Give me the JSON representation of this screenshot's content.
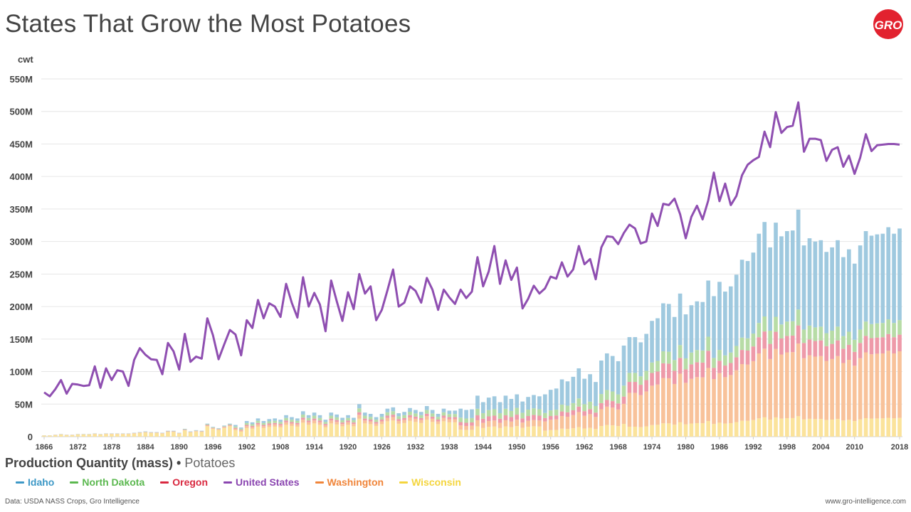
{
  "page": {
    "title": "States That Grow the Most Potatoes",
    "unit_label": "cwt",
    "subtitle_main": "Production Quantity (mass)",
    "subtitle_sep": "•",
    "subtitle_crop": "Potatoes",
    "source": "Data: USDA NASS Crops, Gro Intelligence",
    "site": "www.gro-intelligence.com",
    "logo_text": "GRO"
  },
  "colors": {
    "Idaho": "#9fc9df",
    "North Dakota": "#b7dca6",
    "Oregon": "#ee9aa9",
    "Washington": "#f8c29a",
    "Wisconsin": "#fbe39b",
    "United States": "#8f4fb1",
    "legend_text": {
      "Idaho": "#3d98c6",
      "North Dakota": "#5bb84f",
      "Oregon": "#d9283f",
      "United States": "#8a45b0",
      "Washington": "#f0853a",
      "Wisconsin": "#f4d53d"
    }
  },
  "legend": [
    "Idaho",
    "North Dakota",
    "Oregon",
    "United States",
    "Washington",
    "Wisconsin"
  ],
  "chart_data": {
    "type": "bar+line",
    "title": "States That Grow the Most Potatoes",
    "ylabel": "cwt",
    "ylim": [
      0,
      550
    ],
    "y_unit_note": "millions of cwt",
    "yticks": [
      0,
      50,
      100,
      150,
      200,
      250,
      300,
      350,
      400,
      450,
      500,
      550
    ],
    "ytick_labels": [
      "0",
      "50M",
      "100M",
      "150M",
      "200M",
      "250M",
      "300M",
      "350M",
      "400M",
      "450M",
      "500M",
      "550M"
    ],
    "x_range": [
      1866,
      2018
    ],
    "xticks": [
      1866,
      1872,
      1878,
      1884,
      1890,
      1896,
      1902,
      1908,
      1914,
      1920,
      1926,
      1932,
      1938,
      1944,
      1950,
      1956,
      1962,
      1968,
      1974,
      1980,
      1986,
      1992,
      1998,
      2004,
      2010,
      2018
    ],
    "grid": true,
    "line_series": {
      "name": "United States",
      "x": [
        1866,
        1867,
        1868,
        1869,
        1870,
        1871,
        1872,
        1873,
        1874,
        1875,
        1876,
        1877,
        1878,
        1879,
        1880,
        1881,
        1882,
        1883,
        1884,
        1885,
        1886,
        1887,
        1888,
        1889,
        1890,
        1891,
        1892,
        1893,
        1894,
        1895,
        1896,
        1897,
        1898,
        1899,
        1900,
        1901,
        1902,
        1903,
        1904,
        1905,
        1906,
        1907,
        1908,
        1909,
        1910,
        1911,
        1912,
        1913,
        1914,
        1915,
        1916,
        1917,
        1918,
        1919,
        1920,
        1921,
        1922,
        1923,
        1924,
        1925,
        1926,
        1927,
        1928,
        1929,
        1930,
        1931,
        1932,
        1933,
        1934,
        1935,
        1936,
        1937,
        1938,
        1939,
        1940,
        1941,
        1942,
        1943,
        1944,
        1945,
        1946,
        1947,
        1948,
        1949,
        1950,
        1951,
        1952,
        1953,
        1954,
        1955,
        1956,
        1957,
        1958,
        1959,
        1960,
        1961,
        1962,
        1963,
        1964,
        1965,
        1966,
        1967,
        1968,
        1969,
        1970,
        1971,
        1972,
        1973,
        1974,
        1975,
        1976,
        1977,
        1978,
        1979,
        1980,
        1981,
        1982,
        1983,
        1984,
        1985,
        1986,
        1987,
        1988,
        1989,
        1990,
        1991,
        1992,
        1993,
        1994,
        1995,
        1996,
        1997,
        1998,
        1999,
        2000,
        2001,
        2002,
        2003,
        2004,
        2005,
        2006,
        2007,
        2008,
        2009,
        2010,
        2011,
        2012,
        2013,
        2014,
        2015,
        2016,
        2017,
        2018
      ],
      "values": [
        68,
        62,
        73,
        87,
        66,
        81,
        80,
        78,
        79,
        108,
        75,
        105,
        87,
        102,
        100,
        78,
        118,
        136,
        126,
        119,
        118,
        96,
        144,
        131,
        103,
        158,
        115,
        123,
        120,
        182,
        156,
        119,
        142,
        164,
        157,
        125,
        179,
        167,
        210,
        182,
        205,
        200,
        184,
        235,
        206,
        183,
        245,
        200,
        221,
        203,
        162,
        240,
        208,
        178,
        222,
        196,
        250,
        220,
        231,
        179,
        195,
        225,
        257,
        200,
        206,
        231,
        224,
        206,
        244,
        226,
        195,
        226,
        214,
        204,
        226,
        213,
        223,
        276,
        231,
        254,
        293,
        235,
        271,
        241,
        260,
        197,
        212,
        232,
        220,
        228,
        246,
        243,
        268,
        246,
        257,
        293,
        265,
        273,
        242,
        291,
        308,
        307,
        296,
        313,
        326,
        320,
        297,
        300,
        343,
        324,
        358,
        356,
        366,
        342,
        305,
        338,
        355,
        334,
        363,
        406,
        362,
        389,
        356,
        370,
        402,
        418,
        425,
        430,
        469,
        445,
        499,
        467,
        476,
        478,
        514,
        438,
        458,
        458,
        456,
        424,
        441,
        445,
        415,
        432,
        404,
        429,
        465,
        439,
        448,
        449,
        450,
        450,
        449
      ]
    },
    "bar_series": [
      {
        "name": "Wisconsin",
        "color_key": "Wisconsin"
      },
      {
        "name": "Washington",
        "color_key": "Washington"
      },
      {
        "name": "Oregon",
        "color_key": "Oregon"
      },
      {
        "name": "North Dakota",
        "color_key": "North Dakota"
      },
      {
        "name": "Idaho",
        "color_key": "Idaho"
      }
    ],
    "stacked_totals": {
      "x": [
        1866,
        1867,
        1868,
        1869,
        1870,
        1871,
        1872,
        1873,
        1874,
        1875,
        1876,
        1877,
        1878,
        1879,
        1880,
        1881,
        1882,
        1883,
        1884,
        1885,
        1886,
        1887,
        1888,
        1889,
        1890,
        1891,
        1892,
        1893,
        1894,
        1895,
        1896,
        1897,
        1898,
        1899,
        1900,
        1901,
        1902,
        1903,
        1904,
        1905,
        1906,
        1907,
        1908,
        1909,
        1910,
        1911,
        1912,
        1913,
        1914,
        1915,
        1916,
        1917,
        1918,
        1919,
        1920,
        1921,
        1922,
        1923,
        1924,
        1925,
        1926,
        1927,
        1928,
        1929,
        1930,
        1931,
        1932,
        1933,
        1934,
        1935,
        1936,
        1937,
        1938,
        1939,
        1940,
        1941,
        1942,
        1943,
        1944,
        1945,
        1946,
        1947,
        1948,
        1949,
        1950,
        1951,
        1952,
        1953,
        1954,
        1955,
        1956,
        1957,
        1958,
        1959,
        1960,
        1961,
        1962,
        1963,
        1964,
        1965,
        1966,
        1967,
        1968,
        1969,
        1970,
        1971,
        1972,
        1973,
        1974,
        1975,
        1976,
        1977,
        1978,
        1979,
        1980,
        1981,
        1982,
        1983,
        1984,
        1985,
        1986,
        1987,
        1988,
        1989,
        1990,
        1991,
        1992,
        1993,
        1994,
        1995,
        1996,
        1997,
        1998,
        1999,
        2000,
        2001,
        2002,
        2003,
        2004,
        2005,
        2006,
        2007,
        2008,
        2009,
        2010,
        2011,
        2012,
        2013,
        2014,
        2015,
        2016,
        2017,
        2018
      ],
      "values": [
        2,
        2,
        3,
        4,
        3,
        3,
        4,
        4,
        4,
        5,
        4,
        5,
        5,
        5,
        5,
        5,
        6,
        7,
        8,
        7,
        7,
        6,
        9,
        9,
        6,
        12,
        8,
        10,
        9,
        20,
        15,
        13,
        17,
        20,
        18,
        14,
        24,
        22,
        28,
        24,
        27,
        28,
        26,
        33,
        30,
        28,
        39,
        33,
        37,
        33,
        26,
        37,
        34,
        29,
        33,
        29,
        50,
        37,
        35,
        30,
        35,
        43,
        45,
        36,
        38,
        44,
        41,
        38,
        47,
        41,
        35,
        43,
        40,
        40,
        43,
        41,
        42,
        63,
        53,
        60,
        62,
        53,
        63,
        58,
        65,
        54,
        61,
        64,
        62,
        65,
        72,
        74,
        88,
        85,
        92,
        105,
        89,
        96,
        84,
        117,
        128,
        124,
        116,
        140,
        153,
        153,
        145,
        158,
        178,
        182,
        205,
        204,
        184,
        220,
        188,
        202,
        208,
        207,
        240,
        216,
        238,
        223,
        231,
        249,
        272,
        270,
        283,
        312,
        330,
        291,
        329,
        308,
        316,
        317,
        349,
        294,
        305,
        300,
        302,
        284,
        291,
        302,
        276,
        288,
        266,
        294,
        316,
        309,
        311,
        312,
        322,
        312,
        320
      ]
    },
    "stack_shares_note": "Approximate shares: Wisconsin dominant before 1940, Idaho and Washington dominant after 1960."
  }
}
